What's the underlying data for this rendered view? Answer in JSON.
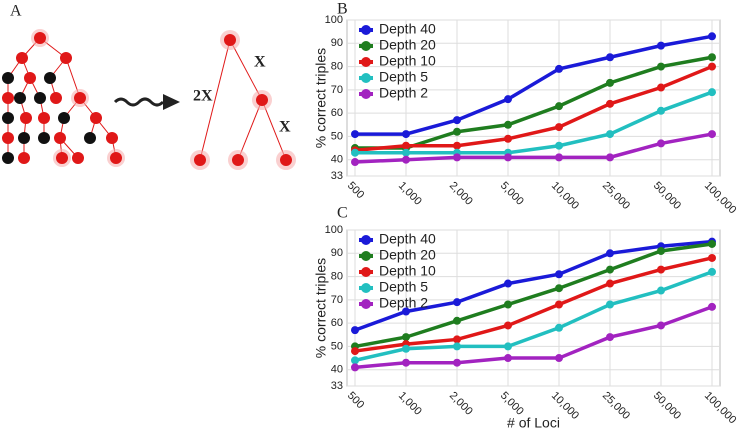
{
  "panel_labels": {
    "a": "A",
    "b": "B",
    "c": "C"
  },
  "diagram": {
    "labels": [
      "X",
      "2X",
      "X"
    ]
  },
  "chart_data": [
    {
      "type": "line",
      "ylabel": "% correct triples",
      "categories": [
        "500",
        "1,000",
        "2,000",
        "5,000",
        "10,000",
        "25,000",
        "50,000",
        "100,000"
      ],
      "ylim": [
        33,
        100
      ],
      "yticks": [
        33,
        40,
        50,
        60,
        70,
        80,
        90,
        100
      ],
      "grid": true,
      "legend": "top-left",
      "series": [
        {
          "name": "Depth 40",
          "color": "#1a1ad8",
          "values": [
            51,
            51,
            57,
            66,
            79,
            84,
            89,
            93
          ]
        },
        {
          "name": "Depth 20",
          "color": "#1f7d1f",
          "values": [
            45,
            45,
            52,
            55,
            63,
            73,
            80,
            84
          ]
        },
        {
          "name": "Depth 10",
          "color": "#e01818",
          "values": [
            44,
            46,
            46,
            49,
            54,
            64,
            71,
            80
          ]
        },
        {
          "name": "Depth 5",
          "color": "#22bfc0",
          "values": [
            43,
            43,
            43,
            43,
            46,
            51,
            61,
            69
          ]
        },
        {
          "name": "Depth 2",
          "color": "#a223c0",
          "values": [
            39,
            40,
            41,
            41,
            41,
            41,
            47,
            51
          ]
        }
      ]
    },
    {
      "type": "line",
      "ylabel": "% correct triples",
      "xlabel": "# of Loci",
      "categories": [
        "500",
        "1,000",
        "2,000",
        "5,000",
        "10,000",
        "25,000",
        "50,000",
        "100,000"
      ],
      "ylim": [
        33,
        100
      ],
      "yticks": [
        33,
        40,
        50,
        60,
        70,
        80,
        90,
        100
      ],
      "grid": true,
      "legend": "top-left",
      "series": [
        {
          "name": "Depth 40",
          "color": "#1a1ad8",
          "values": [
            57,
            65,
            69,
            77,
            81,
            90,
            93,
            95
          ]
        },
        {
          "name": "Depth 20",
          "color": "#1f7d1f",
          "values": [
            50,
            54,
            61,
            68,
            75,
            83,
            91,
            94
          ]
        },
        {
          "name": "Depth 10",
          "color": "#e01818",
          "values": [
            48,
            51,
            53,
            59,
            68,
            77,
            83,
            88
          ]
        },
        {
          "name": "Depth 5",
          "color": "#22bfc0",
          "values": [
            44,
            49,
            50,
            50,
            58,
            68,
            74,
            82
          ]
        },
        {
          "name": "Depth 2",
          "color": "#a223c0",
          "values": [
            41,
            43,
            43,
            45,
            45,
            54,
            59,
            67
          ]
        }
      ]
    }
  ]
}
